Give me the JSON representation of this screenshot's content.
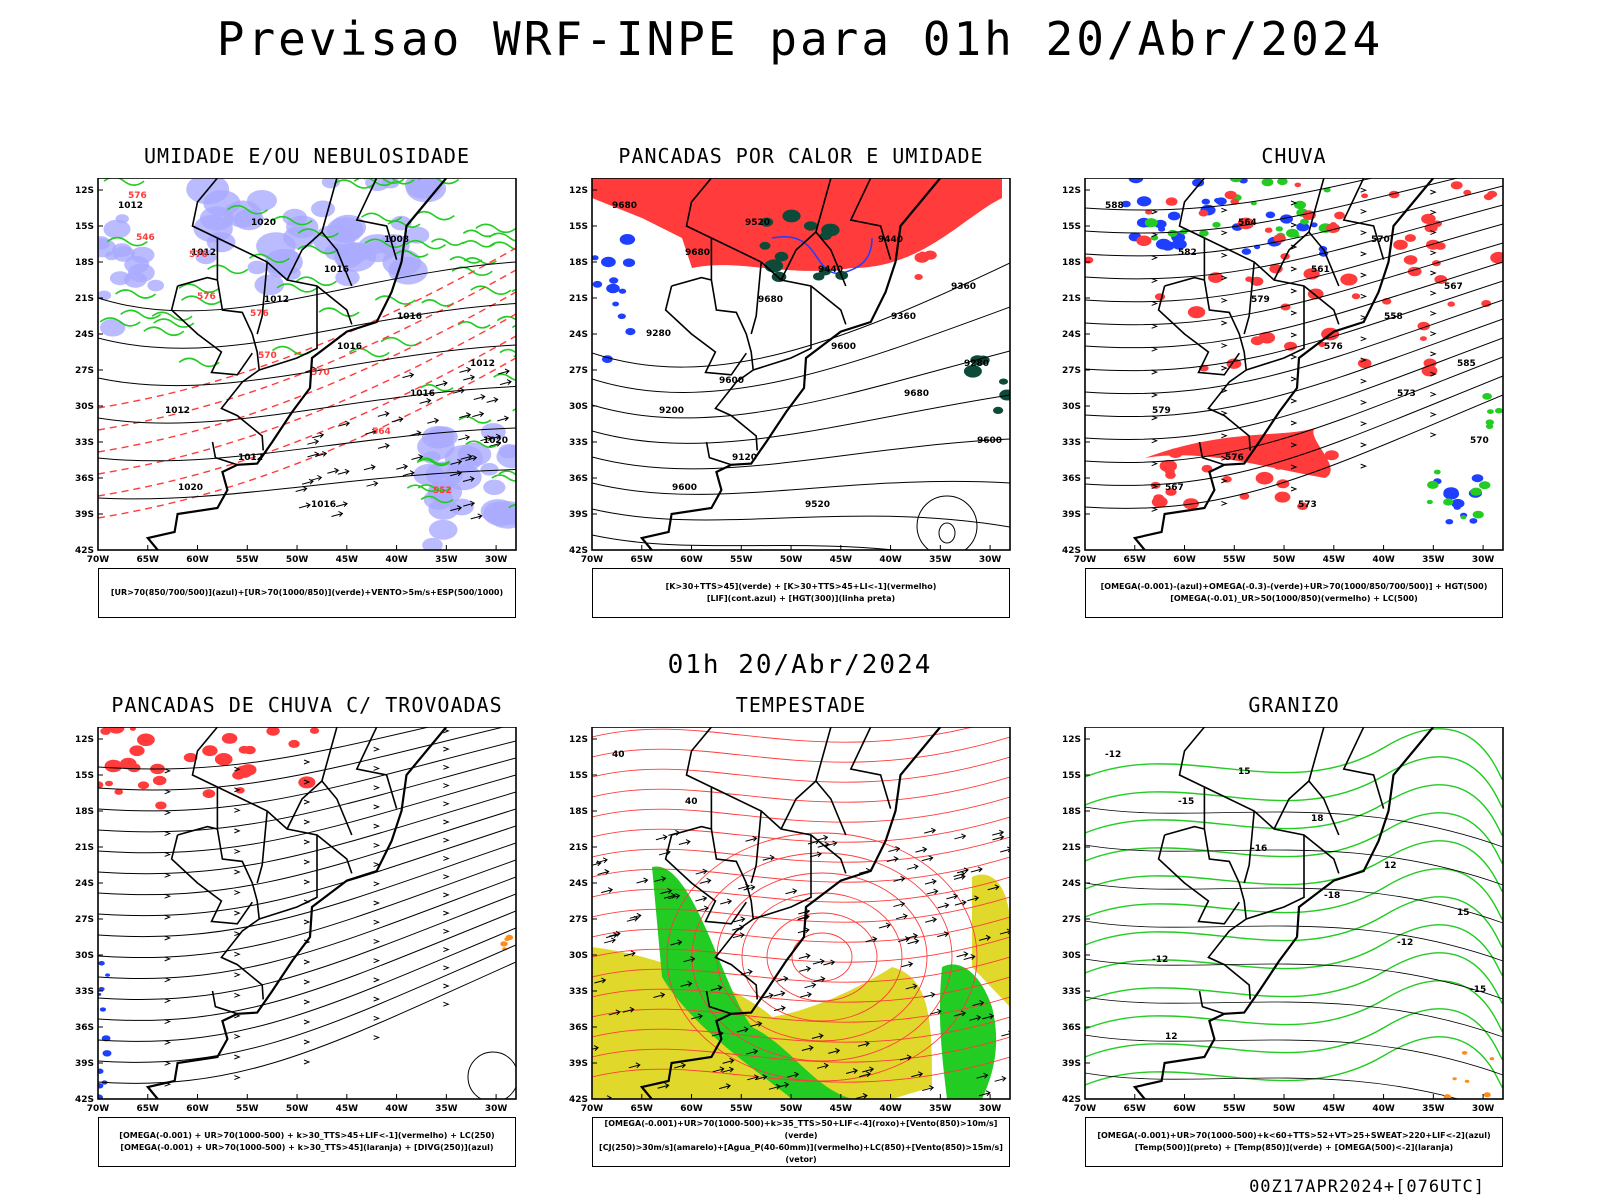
{
  "title": "Previsao WRF-INPE  para 01h 20/Abr/2024",
  "mid_title": "01h 20/Abr/2024",
  "footer": "00Z17APR2024+[076UTC]",
  "axes": {
    "lat_labels": [
      "12S",
      "15S",
      "18S",
      "21S",
      "24S",
      "27S",
      "30S",
      "33S",
      "36S",
      "39S",
      "42S"
    ],
    "lon_labels": [
      "70W",
      "65W",
      "60W",
      "55W",
      "50W",
      "45W",
      "40W",
      "35W",
      "30W"
    ]
  },
  "panels": [
    {
      "title": "UMIDADE E/OU NEBULOSIDADE",
      "legend": [
        "[UR>70(850/700/500)](azul)+[UR>70(1000/850)](verde)+VENTO>5m/s+ESP(500/1000)"
      ],
      "contour_labels": [
        "1012",
        "1012",
        "1012",
        "1016",
        "1016",
        "1020",
        "1020",
        "1020",
        "1016",
        "1016",
        "1012",
        "1012",
        "1012",
        "1016",
        "1008"
      ],
      "thickness_labels": [
        "576",
        "576",
        "576",
        "570",
        "564",
        "552",
        "546",
        "576",
        "570"
      ]
    },
    {
      "title": "PANCADAS POR CALOR E UMIDADE",
      "legend": [
        "[K>30+TTS>45](verde)  +  [K>30+TTS>45+LI<-1](vermelho)",
        "[LIF](cont.azul)  +  [HGT(300)](linha preta)"
      ],
      "contour_labels": [
        "9680",
        "9680",
        "9680",
        "9600",
        "9680",
        "9600",
        "9600",
        "9520",
        "9440",
        "9360",
        "9280",
        "9200",
        "9120",
        "9520",
        "9440",
        "9360",
        "9280",
        "9600"
      ]
    },
    {
      "title": "CHUVA",
      "legend": [
        "[OMEGA(-0.001)-(azul)+OMEGA(-0.3)-(verde)+UR>70(1000/850/700/500)]  +  HGT(500)",
        "[OMEGA(-0.01)_UR>50(1000/850)(vermelho)  +  LC(500)"
      ],
      "contour_labels": [
        "588",
        "582",
        "579",
        "576",
        "573",
        "570",
        "567",
        "564",
        "561",
        "558",
        "585",
        "579",
        "576",
        "573",
        "570",
        "567"
      ]
    },
    {
      "title": "PANCADAS DE CHUVA C/ TROVOADAS",
      "legend": [
        "[OMEGA(-0.001)  +  UR>70(1000-500)  +  k>30_TTS>45+LIF<-1](vermelho)  +  LC(250)",
        "[OMEGA(-0.001)  +  UR>70(1000-500)  +  k>30_TTS>45](laranja)  +  [DIVG(250)](azul)"
      ]
    },
    {
      "title": "TEMPESTADE",
      "legend": [
        "[OMEGA(-0.001)+UR>70(1000-500)+k>35_TTS>50+LIF<-4](roxo)+[Vento(850)>10m/s](verde)",
        "[CJ(250)>30m/s](amarelo)+[Agua_P(40-60mm)](vermelho)+LC(850)+[Vento(850)>15m/s](vetor)"
      ],
      "contour_labels": [
        "40",
        "40"
      ]
    },
    {
      "title": "GRANIZO",
      "legend": [
        "[OMEGA(-0.001)+UR>70(1000-500)+k<60+TTS>52+VT>25+SWEAT>220+LIF<-2](azul)",
        "[Temp(500)](preto)  +  [Temp(850)](verde)  +  [OMEGA(500)<-2](laranja)"
      ],
      "contour_labels": [
        "-12",
        "-15",
        "-16",
        "-18",
        "-12",
        "-15",
        "12",
        "15",
        "18",
        "12",
        "15",
        "-12"
      ]
    }
  ],
  "colors": {
    "blue": "#1f3fff",
    "green": "#22cc22",
    "red": "#ff3b3b",
    "yellow": "#e0d82a",
    "orange": "#ff8c1a",
    "lavender": "#aaaaff",
    "darkgreen": "#0d4a3a",
    "map_bg": "#ffffff"
  }
}
